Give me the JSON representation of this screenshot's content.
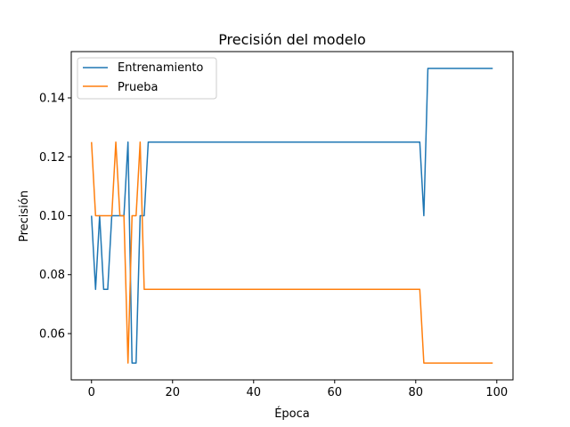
{
  "chart_data": {
    "type": "line",
    "title": "Precisión del modelo",
    "xlabel": "Época",
    "ylabel": "Precisión",
    "xlim": [
      -5,
      104
    ],
    "ylim": [
      0.0443,
      0.1557
    ],
    "xticks": [
      0,
      20,
      40,
      60,
      80,
      100
    ],
    "yticks": [
      0.06,
      0.08,
      0.1,
      0.12,
      0.14
    ],
    "xtick_labels": [
      "0",
      "20",
      "40",
      "60",
      "80",
      "100"
    ],
    "ytick_labels": [
      "0.06",
      "0.08",
      "0.10",
      "0.12",
      "0.14"
    ],
    "grid": false,
    "legend_position": "upper-left",
    "series": [
      {
        "name": "Entrenamiento",
        "color": "#1f77b4",
        "points": [
          [
            0,
            0.1
          ],
          [
            1,
            0.075
          ],
          [
            2,
            0.1
          ],
          [
            3,
            0.075
          ],
          [
            4,
            0.075
          ],
          [
            5,
            0.1
          ],
          [
            6,
            0.1
          ],
          [
            7,
            0.1
          ],
          [
            8,
            0.1
          ],
          [
            9,
            0.125
          ],
          [
            10,
            0.05
          ],
          [
            11,
            0.05
          ],
          [
            12,
            0.1
          ],
          [
            13,
            0.1
          ],
          [
            14,
            0.125
          ],
          [
            81,
            0.125
          ],
          [
            82,
            0.1
          ],
          [
            83,
            0.15
          ],
          [
            99,
            0.15
          ]
        ]
      },
      {
        "name": "Prueba",
        "color": "#ff7f0e",
        "points": [
          [
            0,
            0.125
          ],
          [
            1,
            0.1
          ],
          [
            2,
            0.1
          ],
          [
            3,
            0.1
          ],
          [
            4,
            0.1
          ],
          [
            5,
            0.1
          ],
          [
            6,
            0.125
          ],
          [
            7,
            0.1
          ],
          [
            8,
            0.1
          ],
          [
            9,
            0.05
          ],
          [
            10,
            0.1
          ],
          [
            11,
            0.1
          ],
          [
            12,
            0.125
          ],
          [
            13,
            0.075
          ],
          [
            81,
            0.075
          ],
          [
            82,
            0.05
          ],
          [
            99,
            0.05
          ]
        ]
      }
    ]
  }
}
